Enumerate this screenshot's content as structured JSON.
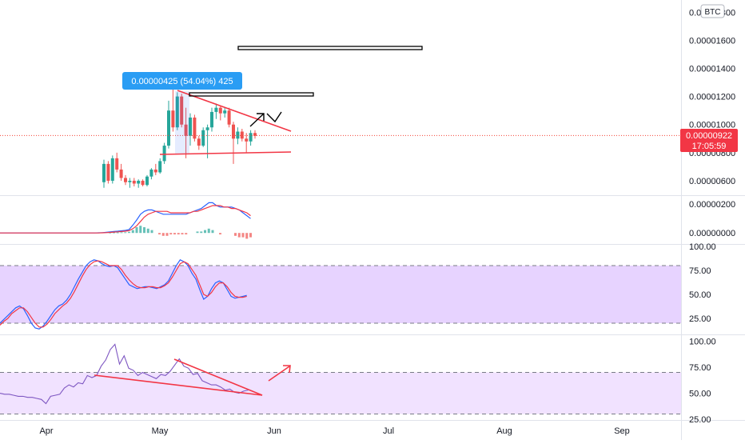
{
  "symbol_badge": "BTC",
  "measure_tooltip": "0.00000425 (54.04%) 425",
  "price_badge": {
    "price": "0.00000922",
    "countdown": "17:05:59"
  },
  "colors": {
    "up": "#26a69a",
    "down": "#ef5350",
    "trend": "#f23645",
    "macd": "#2962ff",
    "signal": "#f23645",
    "band_fill": "#e1c8ff",
    "band_fill_light": "#f1e2ff",
    "price_line": "#f44336",
    "tooltip": "#2a9df4"
  },
  "chart_data": [
    {
      "type": "candlestick",
      "x_ticks": [
        "Apr",
        "May",
        "Jun",
        "Jul",
        "Aug",
        "Sep"
      ],
      "y_ticks": [
        "0.00001800",
        "0.00001600",
        "0.00001400",
        "0.00001200",
        "0.00001000",
        "0.00000800",
        "0.00000600"
      ],
      "ylim": [
        5.2e-06,
        1.83e-05
      ],
      "last_price": 9.22e-06,
      "candles": [
        {
          "o": 5.9e-06,
          "h": 7.5e-06,
          "l": 5.5e-06,
          "c": 7.2e-06
        },
        {
          "o": 7.2e-06,
          "h": 7.4e-06,
          "l": 5.8e-06,
          "c": 6e-06
        },
        {
          "o": 6e-06,
          "h": 7.8e-06,
          "l": 5.8e-06,
          "c": 7.6e-06
        },
        {
          "o": 7.6e-06,
          "h": 8e-06,
          "l": 6.6e-06,
          "c": 6.8e-06
        },
        {
          "o": 6.8e-06,
          "h": 7.2e-06,
          "l": 6e-06,
          "c": 6.2e-06
        },
        {
          "o": 6.2e-06,
          "h": 6.4e-06,
          "l": 5.7e-06,
          "c": 5.9e-06
        },
        {
          "o": 5.9e-06,
          "h": 6.2e-06,
          "l": 5.5e-06,
          "c": 6e-06
        },
        {
          "o": 6e-06,
          "h": 6.2e-06,
          "l": 5.6e-06,
          "c": 5.8e-06
        },
        {
          "o": 5.8e-06,
          "h": 6.1e-06,
          "l": 5.5e-06,
          "c": 6e-06
        },
        {
          "o": 6e-06,
          "h": 6.1e-06,
          "l": 5.6e-06,
          "c": 5.7e-06
        },
        {
          "o": 5.7e-06,
          "h": 6.4e-06,
          "l": 5.6e-06,
          "c": 6.3e-06
        },
        {
          "o": 6.3e-06,
          "h": 6.9e-06,
          "l": 6.1e-06,
          "c": 6.8e-06
        },
        {
          "o": 6.8e-06,
          "h": 7.2e-06,
          "l": 6.4e-06,
          "c": 6.6e-06
        },
        {
          "o": 6.6e-06,
          "h": 7.6e-06,
          "l": 6.5e-06,
          "c": 7.4e-06
        },
        {
          "o": 7.4e-06,
          "h": 8.7e-06,
          "l": 7.2e-06,
          "c": 8.5e-06
        },
        {
          "o": 8.5e-06,
          "h": 1.17e-05,
          "l": 8.3e-06,
          "c": 1.1e-05
        },
        {
          "o": 1.1e-05,
          "h": 1.25e-05,
          "l": 9.5e-06,
          "c": 9.8e-06
        },
        {
          "o": 9.8e-06,
          "h": 1.23e-05,
          "l": 9.6e-06,
          "c": 1.2e-05
        },
        {
          "o": 1.2e-05,
          "h": 1.22e-05,
          "l": 9.8e-06,
          "c": 1e-05
        },
        {
          "o": 1e-05,
          "h": 1.12e-05,
          "l": 7.6e-06,
          "c": 9.2e-06
        },
        {
          "o": 9.2e-06,
          "h": 1.08e-05,
          "l": 8.5e-06,
          "c": 1.05e-05
        },
        {
          "o": 1.05e-05,
          "h": 1.07e-05,
          "l": 8.8e-06,
          "c": 9e-06
        },
        {
          "o": 9e-06,
          "h": 9.2e-06,
          "l": 8.2e-06,
          "c": 8.5e-06
        },
        {
          "o": 8.5e-06,
          "h": 9.8e-06,
          "l": 8.4e-06,
          "c": 9.6e-06
        },
        {
          "o": 9.6e-06,
          "h": 1e-05,
          "l": 7.6e-06,
          "c": 9.8e-06
        },
        {
          "o": 9.8e-06,
          "h": 1.12e-05,
          "l": 9.5e-06,
          "c": 1.09e-05
        },
        {
          "o": 1.09e-05,
          "h": 1.15e-05,
          "l": 1.04e-05,
          "c": 1.12e-05
        },
        {
          "o": 1.12e-05,
          "h": 1.13e-05,
          "l": 1.03e-05,
          "c": 1.08e-05
        },
        {
          "o": 1.08e-05,
          "h": 1.12e-05,
          "l": 1.05e-05,
          "c": 1.1e-05
        },
        {
          "o": 1.1e-05,
          "h": 1.12e-05,
          "l": 9.8e-06,
          "c": 1e-05
        },
        {
          "o": 1e-05,
          "h": 1.02e-05,
          "l": 7.2e-06,
          "c": 9e-06
        },
        {
          "o": 9e-06,
          "h": 9.8e-06,
          "l": 8.6e-06,
          "c": 9.5e-06
        },
        {
          "o": 9.5e-06,
          "h": 9.7e-06,
          "l": 8.8e-06,
          "c": 9e-06
        },
        {
          "o": 9e-06,
          "h": 9.4e-06,
          "l": 8e-06,
          "c": 8.8e-06
        },
        {
          "o": 8.8e-06,
          "h": 9.6e-06,
          "l": 8.5e-06,
          "c": 9.4e-06
        },
        {
          "o": 9.4e-06,
          "h": 9.6e-06,
          "l": 9e-06,
          "c": 9.2e-06
        }
      ]
    },
    {
      "type": "line",
      "y_ticks": [
        "0.00000200",
        "0.00000000"
      ],
      "ylim": [
        -6e-07,
        2.4e-06
      ],
      "series": [
        {
          "values": [
            0,
            0,
            0,
            0,
            0,
            0,
            0,
            0,
            0,
            0,
            0,
            0,
            0,
            0,
            0,
            0,
            0,
            0,
            0,
            0,
            0,
            0,
            0,
            0,
            0,
            0,
            1e-08,
            2e-08,
            5e-08,
            8e-08,
            1e-07,
            1.2e-07,
            1.5e-07,
            1.8e-07,
            2.4e-07,
            5.5e-07,
            9e-07,
            1.3e-06,
            1.5e-06,
            1.6e-06,
            1.6e-06,
            1.5e-06,
            1.4e-06,
            1.3e-06,
            1.3e-06,
            1.3e-06,
            1.3e-06,
            1.3e-06,
            1.3e-06,
            1.3e-06,
            1.4e-06,
            1.5e-06,
            1.6e-06,
            1.7e-06,
            1.9e-06,
            2.1e-06,
            2.1e-06,
            1.9e-06,
            1.8e-06,
            1.8e-06,
            1.8e-06,
            1.8e-06,
            1.7e-06,
            1.6e-06,
            1.4e-06,
            1.2e-06,
            1e-06
          ]
        },
        {
          "values": [
            0,
            0,
            0,
            0,
            0,
            0,
            0,
            0,
            0,
            0,
            0,
            0,
            0,
            0,
            0,
            0,
            0,
            0,
            0,
            0,
            0,
            0,
            0,
            0,
            0,
            0,
            0,
            1e-08,
            2e-08,
            4e-08,
            6e-08,
            8e-08,
            1e-07,
            1.2e-07,
            1.6e-07,
            3e-07,
            5e-07,
            8e-07,
            1.1e-06,
            1.3e-06,
            1.4e-06,
            1.5e-06,
            1.5e-06,
            1.5e-06,
            1.5e-06,
            1.4e-06,
            1.4e-06,
            1.4e-06,
            1.4e-06,
            1.4e-06,
            1.4e-06,
            1.5e-06,
            1.5e-06,
            1.6e-06,
            1.7e-06,
            1.8e-06,
            1.9e-06,
            1.9e-06,
            1.9e-06,
            1.8e-06,
            1.8e-06,
            1.7e-06,
            1.7e-06,
            1.6e-06,
            1.5e-06,
            1.4e-06,
            1.2e-06
          ]
        }
      ],
      "histogram": [
        0,
        0,
        0,
        0,
        0,
        0,
        0,
        0,
        0,
        0,
        0,
        0,
        0,
        0,
        0,
        0,
        0,
        0,
        0,
        0,
        0,
        0,
        0,
        0,
        0,
        0,
        0,
        0,
        0,
        3e-08,
        4e-08,
        4e-08,
        5e-08,
        5e-08,
        8e-08,
        2e-07,
        4e-07,
        5e-07,
        4e-07,
        3e-07,
        2e-07,
        0,
        -1e-07,
        -2e-07,
        -2e-07,
        -1e-07,
        -1e-07,
        -1e-07,
        -1e-07,
        -1e-07,
        0,
        0,
        1e-07,
        1e-07,
        2e-07,
        3e-07,
        2e-07,
        0,
        -1e-07,
        0,
        0,
        0,
        -2e-07,
        -3e-07,
        -3e-07,
        -4e-07,
        -3e-07
      ]
    },
    {
      "type": "line",
      "y_ticks": [
        "100.00",
        "75.00",
        "50.00",
        "25.00"
      ],
      "ylim": [
        10,
        100
      ],
      "band": [
        20,
        80
      ],
      "series": [
        {
          "values": [
            20,
            24,
            28,
            32,
            36,
            38,
            35,
            28,
            20,
            15,
            14,
            17,
            22,
            28,
            34,
            38,
            40,
            44,
            50,
            58,
            66,
            73,
            80,
            84,
            86,
            85,
            82,
            80,
            79,
            80,
            78,
            72,
            66,
            60,
            58,
            56,
            57,
            58,
            58,
            57,
            56,
            58,
            60,
            64,
            72,
            80,
            86,
            84,
            80,
            72,
            66,
            55,
            45,
            48,
            56,
            62,
            64,
            62,
            55,
            48,
            46,
            47,
            48,
            49
          ]
        },
        {
          "values": [
            18,
            22,
            25,
            30,
            33,
            36,
            36,
            32,
            26,
            20,
            16,
            16,
            19,
            24,
            30,
            34,
            38,
            41,
            46,
            53,
            61,
            69,
            76,
            81,
            84,
            85,
            84,
            82,
            80,
            80,
            80,
            76,
            70,
            65,
            61,
            58,
            57,
            57,
            58,
            58,
            57,
            57,
            59,
            62,
            68,
            75,
            82,
            84,
            82,
            76,
            70,
            60,
            50,
            48,
            52,
            58,
            62,
            62,
            58,
            52,
            48,
            47,
            47,
            48
          ]
        }
      ]
    },
    {
      "type": "line",
      "y_ticks": [
        "100.00",
        "75.00",
        "50.00",
        "25.00"
      ],
      "ylim": [
        25,
        105
      ],
      "band": [
        30,
        70
      ],
      "series": [
        {
          "values": [
            50,
            49,
            49,
            48,
            47,
            47,
            46,
            46,
            45,
            44,
            40,
            47,
            48,
            49,
            55,
            58,
            56,
            60,
            59,
            67,
            65,
            67,
            76,
            82,
            92,
            97,
            78,
            86,
            74,
            72,
            67,
            70,
            68,
            66,
            64,
            68,
            67,
            71,
            77,
            83,
            76,
            74,
            68,
            69,
            62,
            60,
            58,
            58,
            56,
            53,
            54,
            51,
            50,
            52,
            53
          ]
        }
      ]
    }
  ]
}
